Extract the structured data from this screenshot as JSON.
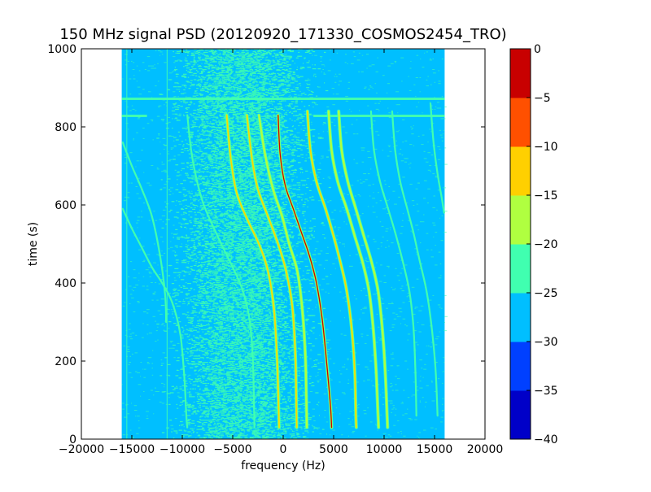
{
  "chart_data": {
    "type": "heatmap",
    "title": "150 MHz signal PSD (20120920_171330_COSMOS2454_TRO)",
    "xlabel": "frequency (Hz)",
    "ylabel": "time (s)",
    "xlim": [
      -20000,
      20000
    ],
    "ylim": [
      0,
      1000
    ],
    "xticks": [
      -20000,
      -15000,
      -10000,
      -5000,
      0,
      5000,
      10000,
      15000,
      20000
    ],
    "xtick_labels": [
      "−20000",
      "−15000",
      "−10000",
      "−5000",
      "0",
      "5000",
      "10000",
      "15000",
      "20000"
    ],
    "yticks": [
      0,
      200,
      400,
      600,
      800,
      1000
    ],
    "ytick_labels": [
      "0",
      "200",
      "400",
      "600",
      "800",
      "1000"
    ],
    "data_extent_x": [
      -16000,
      16000
    ],
    "background_level": -27.5,
    "background_color": "#00bfff",
    "colorbar": {
      "levels": [
        -40,
        -35,
        -30,
        -25,
        -20,
        -15,
        -10,
        -5,
        0
      ],
      "tick_labels": [
        "−40",
        "−35",
        "−30",
        "−25",
        "−20",
        "−15",
        "−10",
        "−5",
        "0"
      ],
      "colors": [
        "#0000c8",
        "#0040ff",
        "#00bfff",
        "#40ffb0",
        "#b0ff40",
        "#ffd000",
        "#ff5000",
        "#c80000"
      ]
    },
    "noise_band": {
      "center_hz": -4000,
      "width_hz": 9000,
      "level": -22.5
    },
    "horizontal_lines": [
      {
        "time_s": 872,
        "start_hz": -16000,
        "end_hz": 16000,
        "level": -22.5
      },
      {
        "time_s": 828,
        "start_hz": 3000,
        "end_hz": 16000,
        "level": -22.5
      },
      {
        "time_s": 828,
        "start_hz": -16000,
        "end_hz": -13500,
        "level": -22.5
      }
    ],
    "vertical_lines": [
      {
        "freq_hz": -11500,
        "t_start": 0,
        "t_end": 1000,
        "level": -22.5
      },
      {
        "freq_hz": -15500,
        "t_start": 0,
        "t_end": 1000,
        "level": -22.5
      }
    ],
    "series": [
      {
        "points": [
          [
            -15900,
            760
          ],
          [
            -15000,
            700
          ],
          [
            -14000,
            640
          ],
          [
            -13000,
            570
          ],
          [
            -12200,
            470
          ],
          [
            -11700,
            370
          ],
          [
            -11600,
            300
          ]
        ],
        "level": -22.5
      },
      {
        "points": [
          [
            -15900,
            590
          ],
          [
            -15000,
            540
          ],
          [
            -14000,
            490
          ],
          [
            -13000,
            440
          ],
          [
            -12000,
            400
          ],
          [
            -11000,
            350
          ],
          [
            -10200,
            270
          ],
          [
            -9800,
            160
          ],
          [
            -9600,
            60
          ],
          [
            -9500,
            30
          ]
        ],
        "level": -22.5
      },
      {
        "points": [
          [
            -9500,
            830
          ],
          [
            -9000,
            720
          ],
          [
            -8000,
            610
          ],
          [
            -6500,
            520
          ],
          [
            -5000,
            440
          ],
          [
            -4000,
            380
          ],
          [
            -3300,
            300
          ],
          [
            -3000,
            200
          ],
          [
            -2900,
            100
          ],
          [
            -2850,
            30
          ]
        ],
        "level": -22.5
      },
      {
        "points": [
          [
            -5600,
            830
          ],
          [
            -5200,
            720
          ],
          [
            -4600,
            630
          ],
          [
            -3500,
            560
          ],
          [
            -2400,
            500
          ],
          [
            -1500,
            430
          ],
          [
            -900,
            330
          ],
          [
            -600,
            200
          ],
          [
            -450,
            80
          ],
          [
            -400,
            30
          ]
        ],
        "level": -10
      },
      {
        "points": [
          [
            -3600,
            830
          ],
          [
            -3100,
            720
          ],
          [
            -2500,
            640
          ],
          [
            -1500,
            570
          ],
          [
            -500,
            500
          ],
          [
            300,
            430
          ],
          [
            900,
            340
          ],
          [
            1200,
            220
          ],
          [
            1300,
            100
          ],
          [
            1350,
            30
          ]
        ],
        "level": -12.5
      },
      {
        "points": [
          [
            -500,
            830
          ],
          [
            -300,
            730
          ],
          [
            200,
            650
          ],
          [
            1000,
            590
          ],
          [
            1800,
            530
          ],
          [
            2600,
            470
          ],
          [
            3300,
            400
          ],
          [
            3900,
            300
          ],
          [
            4400,
            170
          ],
          [
            4700,
            80
          ],
          [
            4800,
            30
          ]
        ],
        "level": -2.5
      },
      {
        "points": [
          [
            -2400,
            830
          ],
          [
            -1800,
            730
          ],
          [
            -1000,
            640
          ],
          [
            -100,
            570
          ],
          [
            600,
            500
          ],
          [
            1400,
            430
          ],
          [
            1900,
            330
          ],
          [
            2200,
            210
          ],
          [
            2300,
            100
          ],
          [
            2350,
            30
          ]
        ],
        "level": -17.5
      },
      {
        "points": [
          [
            2400,
            840
          ],
          [
            2700,
            740
          ],
          [
            3300,
            660
          ],
          [
            4200,
            590
          ],
          [
            5000,
            520
          ],
          [
            5700,
            450
          ],
          [
            6300,
            380
          ],
          [
            6800,
            280
          ],
          [
            7100,
            170
          ],
          [
            7200,
            60
          ],
          [
            7250,
            30
          ]
        ],
        "level": -12.5
      },
      {
        "points": [
          [
            4500,
            840
          ],
          [
            4800,
            740
          ],
          [
            5400,
            660
          ],
          [
            6300,
            590
          ],
          [
            7100,
            520
          ],
          [
            7900,
            450
          ],
          [
            8500,
            380
          ],
          [
            8900,
            290
          ],
          [
            9200,
            180
          ],
          [
            9400,
            60
          ],
          [
            9450,
            30
          ]
        ],
        "level": -15
      },
      {
        "points": [
          [
            5500,
            840
          ],
          [
            5800,
            740
          ],
          [
            6400,
            660
          ],
          [
            7200,
            590
          ],
          [
            8000,
            520
          ],
          [
            8800,
            450
          ],
          [
            9400,
            380
          ],
          [
            9800,
            290
          ],
          [
            10100,
            180
          ],
          [
            10300,
            60
          ],
          [
            10350,
            30
          ]
        ],
        "level": -17.5
      },
      {
        "points": [
          [
            8700,
            840
          ],
          [
            9000,
            740
          ],
          [
            9600,
            660
          ],
          [
            10400,
            590
          ],
          [
            11200,
            520
          ],
          [
            11900,
            450
          ],
          [
            12500,
            380
          ],
          [
            12900,
            290
          ],
          [
            13100,
            180
          ],
          [
            13200,
            60
          ]
        ],
        "level": -22.5
      },
      {
        "points": [
          [
            10800,
            840
          ],
          [
            11100,
            740
          ],
          [
            11600,
            660
          ],
          [
            12300,
            590
          ],
          [
            12900,
            530
          ],
          [
            13500,
            460
          ],
          [
            14200,
            380
          ],
          [
            14700,
            290
          ],
          [
            15100,
            180
          ],
          [
            15300,
            60
          ]
        ],
        "level": -22.5
      },
      {
        "points": [
          [
            14600,
            860
          ],
          [
            14900,
            760
          ],
          [
            15300,
            680
          ],
          [
            15700,
            620
          ],
          [
            15950,
            580
          ]
        ],
        "level": -22.5
      }
    ]
  }
}
